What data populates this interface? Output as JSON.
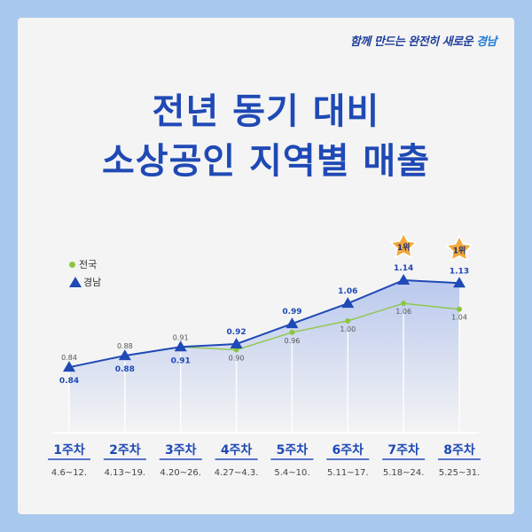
{
  "slogan": {
    "part1": "함께 만드는 완전히 새로운 ",
    "part2": "경남"
  },
  "title": {
    "line1": "전년 동기 대비",
    "line2": "소상공인 지역별 매출"
  },
  "legend": {
    "national": "전국",
    "gyeongnam": "경남"
  },
  "colors": {
    "national": "#8cc63f",
    "gyeongnam": "#1f49b5",
    "star": "#f2a93b"
  },
  "chart_data": {
    "type": "line",
    "categories": [
      "1주차",
      "2주차",
      "3주차",
      "4주차",
      "5주차",
      "6주차",
      "7주차",
      "8주차"
    ],
    "dates": [
      "4.6~12.",
      "4.13~19.",
      "4.20~26.",
      "4.27~4.3.",
      "5.4~10.",
      "5.11~17.",
      "5.18~24.",
      "5.25~31."
    ],
    "series": [
      {
        "name": "전국",
        "values": [
          0.84,
          0.88,
          0.91,
          0.9,
          0.96,
          1.0,
          1.06,
          1.04
        ]
      },
      {
        "name": "경남",
        "values": [
          0.84,
          0.88,
          0.91,
          0.92,
          0.99,
          1.06,
          1.14,
          1.13
        ]
      }
    ],
    "value_labels": {
      "national": [
        "0.84",
        "0.88",
        "0.91",
        "0.90",
        "0.96",
        "1.00",
        "1.06",
        "1.04"
      ],
      "gyeongnam": [
        "0.84",
        "0.88",
        "0.91",
        "0.92",
        "0.99",
        "1.06",
        "1.14",
        "1.13"
      ]
    },
    "highlights": [
      {
        "index": 6,
        "label": "1위"
      },
      {
        "index": 7,
        "label": "1위"
      }
    ],
    "ylim": [
      0.7,
      1.25
    ]
  }
}
